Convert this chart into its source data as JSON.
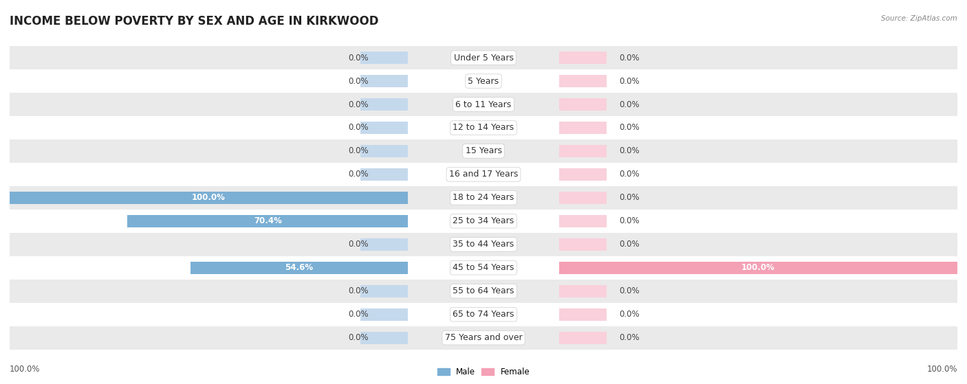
{
  "title": "INCOME BELOW POVERTY BY SEX AND AGE IN KIRKWOOD",
  "source": "Source: ZipAtlas.com",
  "categories": [
    "Under 5 Years",
    "5 Years",
    "6 to 11 Years",
    "12 to 14 Years",
    "15 Years",
    "16 and 17 Years",
    "18 to 24 Years",
    "25 to 34 Years",
    "35 to 44 Years",
    "45 to 54 Years",
    "55 to 64 Years",
    "65 to 74 Years",
    "75 Years and over"
  ],
  "male_values": [
    0.0,
    0.0,
    0.0,
    0.0,
    0.0,
    0.0,
    100.0,
    70.4,
    0.0,
    54.6,
    0.0,
    0.0,
    0.0
  ],
  "female_values": [
    0.0,
    0.0,
    0.0,
    0.0,
    0.0,
    0.0,
    0.0,
    0.0,
    0.0,
    100.0,
    0.0,
    0.0,
    0.0
  ],
  "male_color": "#7bafd4",
  "male_bg_color": "#c5d9ec",
  "female_color": "#f4a0b5",
  "female_bg_color": "#f9d0db",
  "male_label": "Male",
  "female_label": "Female",
  "row_bg_light": "#eaeaea",
  "row_bg_dark": "#f5f5f5",
  "bar_height": 0.52,
  "min_bar": 12.0,
  "xlim": 100.0,
  "label_fontsize": 8.5,
  "category_fontsize": 9.0,
  "title_fontsize": 12
}
